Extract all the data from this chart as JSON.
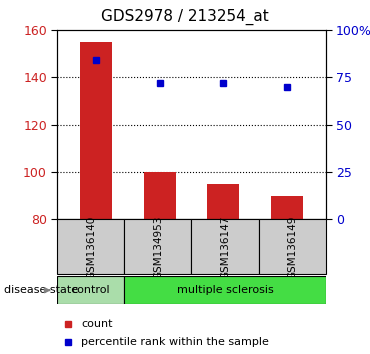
{
  "title": "GDS2978 / 213254_at",
  "samples": [
    "GSM136140",
    "GSM134953",
    "GSM136147",
    "GSM136149"
  ],
  "bar_values": [
    155,
    100,
    95,
    90
  ],
  "dot_values_pct": [
    84,
    72,
    72,
    70
  ],
  "bar_bottom": 80,
  "ylim_left": [
    80,
    160
  ],
  "ylim_right": [
    0,
    100
  ],
  "yticks_left": [
    80,
    100,
    120,
    140,
    160
  ],
  "yticks_right": [
    0,
    25,
    50,
    75,
    100
  ],
  "ytick_labels_right": [
    "0",
    "25",
    "50",
    "75",
    "100%"
  ],
  "gridlines_at": [
    100,
    120,
    140
  ],
  "bar_color": "#cc2222",
  "dot_color": "#0000cc",
  "disease_control_color": "#aaddaa",
  "disease_ms_color": "#44dd44",
  "sample_box_color": "#cccccc",
  "background_color": "#ffffff",
  "disease_state_label": "disease state",
  "legend_count_label": "count",
  "legend_percentile_label": "percentile rank within the sample",
  "title_fontsize": 11,
  "tick_fontsize": 9,
  "label_fontsize": 8,
  "bar_width": 0.5
}
